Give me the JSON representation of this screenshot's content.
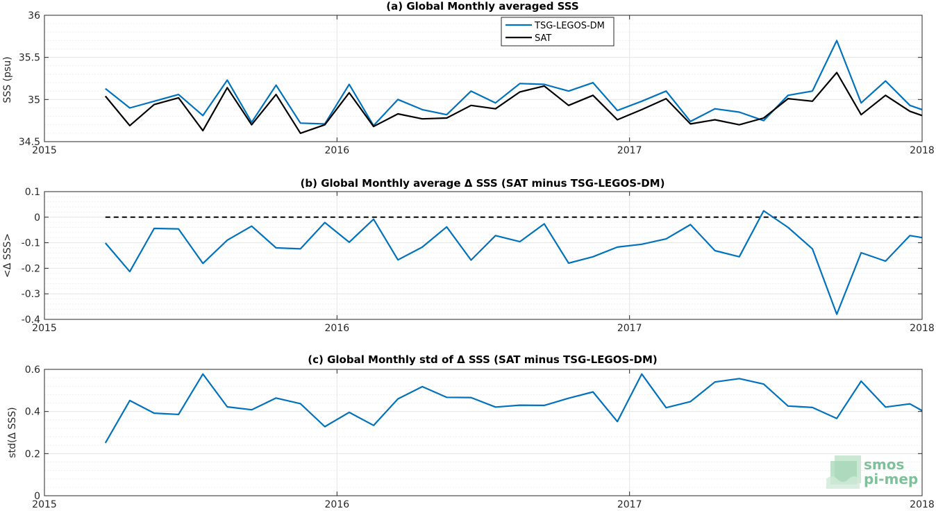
{
  "colors": {
    "tsg": "#0072BD",
    "sat": "#000000",
    "axis": "#262626",
    "grid": "#e5e5e5",
    "logo": "#7fbf9a"
  },
  "logo": {
    "line1": "smos",
    "line2": "pi-mep"
  },
  "chart_data": [
    {
      "type": "line",
      "title": "(a) Global Monthly averaged SSS",
      "ylabel": "SSS (psu)",
      "xlabel": "",
      "xlim": [
        2015,
        2018
      ],
      "ylim": [
        34.5,
        36
      ],
      "xticks": [
        2015,
        2016,
        2017,
        2018
      ],
      "xticklabels": [
        "2015",
        "2016",
        "2017",
        "2018"
      ],
      "yticks": [
        34.5,
        35,
        35.5,
        36
      ],
      "yticklabels": [
        "34.5",
        "35",
        "35.5",
        "36"
      ],
      "grid": true,
      "legend": "top-center",
      "x": [
        2015.2083,
        2015.2917,
        2015.375,
        2015.4583,
        2015.5417,
        2015.625,
        2015.7083,
        2015.7917,
        2015.875,
        2015.9583,
        2016.0417,
        2016.125,
        2016.2083,
        2016.2917,
        2016.375,
        2016.4583,
        2016.5417,
        2016.625,
        2016.7083,
        2016.7917,
        2016.875,
        2016.9583,
        2017.0417,
        2017.125,
        2017.2083,
        2017.2917,
        2017.375,
        2017.4583,
        2017.5417,
        2017.625,
        2017.7083,
        2017.7917,
        2017.875,
        2017.9583,
        2018.0
      ],
      "series": [
        {
          "name": "TSG-LEGOS-DM",
          "color": "#0072BD",
          "values": [
            35.13,
            34.9,
            34.98,
            35.06,
            34.81,
            35.23,
            34.73,
            35.17,
            34.72,
            34.71,
            35.18,
            34.69,
            35.0,
            34.88,
            34.82,
            35.1,
            34.96,
            35.19,
            35.18,
            35.1,
            35.2,
            34.87,
            34.98,
            35.1,
            34.74,
            34.89,
            34.85,
            34.75,
            35.05,
            35.1,
            35.7,
            34.96,
            35.22,
            34.93,
            34.88
          ]
        },
        {
          "name": "SAT",
          "color": "#000000",
          "values": [
            35.04,
            34.69,
            34.94,
            35.02,
            34.63,
            35.14,
            34.7,
            35.06,
            34.6,
            34.7,
            35.08,
            34.68,
            34.83,
            34.77,
            34.78,
            34.93,
            34.89,
            35.09,
            35.16,
            34.93,
            35.05,
            34.76,
            34.88,
            35.01,
            34.71,
            34.76,
            34.7,
            34.78,
            35.01,
            34.98,
            35.32,
            34.82,
            35.05,
            34.86,
            34.81
          ]
        }
      ]
    },
    {
      "type": "line",
      "title": "(b) Global Monthly average Δ SSS (SAT minus TSG-LEGOS-DM)",
      "ylabel": "<Δ SSS>",
      "xlabel": "",
      "xlim": [
        2015,
        2018
      ],
      "ylim": [
        -0.4,
        0.1
      ],
      "xticks": [
        2015,
        2016,
        2017,
        2018
      ],
      "xticklabels": [
        "2015",
        "2016",
        "2017",
        "2018"
      ],
      "yticks": [
        -0.4,
        -0.3,
        -0.2,
        -0.1,
        0,
        0.1
      ],
      "yticklabels": [
        "-0.4",
        "-0.3",
        "-0.2",
        "-0.1",
        "0",
        "0.1"
      ],
      "grid": true,
      "reference_line": {
        "y": 0,
        "style": "dashed",
        "x_from": 2015.2083,
        "x_to": 2018.0
      },
      "x": [
        2015.2083,
        2015.2917,
        2015.375,
        2015.4583,
        2015.5417,
        2015.625,
        2015.7083,
        2015.7917,
        2015.875,
        2015.9583,
        2016.0417,
        2016.125,
        2016.2083,
        2016.2917,
        2016.375,
        2016.4583,
        2016.5417,
        2016.625,
        2016.7083,
        2016.7917,
        2016.875,
        2016.9583,
        2017.0417,
        2017.125,
        2017.2083,
        2017.2917,
        2017.375,
        2017.4583,
        2017.5417,
        2017.625,
        2017.7083,
        2017.7917,
        2017.875,
        2017.9583,
        2018.0
      ],
      "series": [
        {
          "name": "",
          "color": "#0072BD",
          "values": [
            -0.101,
            -0.213,
            -0.044,
            -0.046,
            -0.181,
            -0.09,
            -0.035,
            -0.12,
            -0.124,
            -0.021,
            -0.098,
            -0.008,
            -0.167,
            -0.117,
            -0.038,
            -0.168,
            -0.072,
            -0.096,
            -0.026,
            -0.18,
            -0.155,
            -0.117,
            -0.106,
            -0.085,
            -0.029,
            -0.131,
            -0.155,
            0.025,
            -0.04,
            -0.124,
            -0.38,
            -0.139,
            -0.172,
            -0.072,
            -0.08
          ]
        }
      ]
    },
    {
      "type": "line",
      "title": "(c) Global Monthly std of Δ SSS (SAT minus TSG-LEGOS-DM)",
      "ylabel": "std(Δ SSS)",
      "xlabel": "",
      "xlim": [
        2015,
        2018
      ],
      "ylim": [
        0,
        0.6
      ],
      "xticks": [
        2015,
        2016,
        2017,
        2018
      ],
      "xticklabels": [
        "2015",
        "2016",
        "2017",
        "2018"
      ],
      "yticks": [
        0,
        0.2,
        0.4,
        0.6
      ],
      "yticklabels": [
        "0",
        "0.2",
        "0.4",
        "0.6"
      ],
      "grid": true,
      "x": [
        2015.2083,
        2015.2917,
        2015.375,
        2015.4583,
        2015.5417,
        2015.625,
        2015.7083,
        2015.7917,
        2015.875,
        2015.9583,
        2016.0417,
        2016.125,
        2016.2083,
        2016.2917,
        2016.375,
        2016.4583,
        2016.5417,
        2016.625,
        2016.7083,
        2016.7917,
        2016.875,
        2016.9583,
        2017.0417,
        2017.125,
        2017.2083,
        2017.2917,
        2017.375,
        2017.4583,
        2017.5417,
        2017.625,
        2017.7083,
        2017.7917,
        2017.875,
        2017.9583,
        2018.0
      ],
      "series": [
        {
          "name": "",
          "color": "#0072BD",
          "values": [
            0.251,
            0.452,
            0.392,
            0.386,
            0.578,
            0.422,
            0.408,
            0.464,
            0.437,
            0.328,
            0.396,
            0.334,
            0.46,
            0.518,
            0.467,
            0.466,
            0.421,
            0.43,
            0.429,
            0.463,
            0.493,
            0.352,
            0.578,
            0.418,
            0.447,
            0.54,
            0.556,
            0.53,
            0.426,
            0.419,
            0.367,
            0.544,
            0.421,
            0.436,
            0.404
          ]
        }
      ]
    }
  ]
}
